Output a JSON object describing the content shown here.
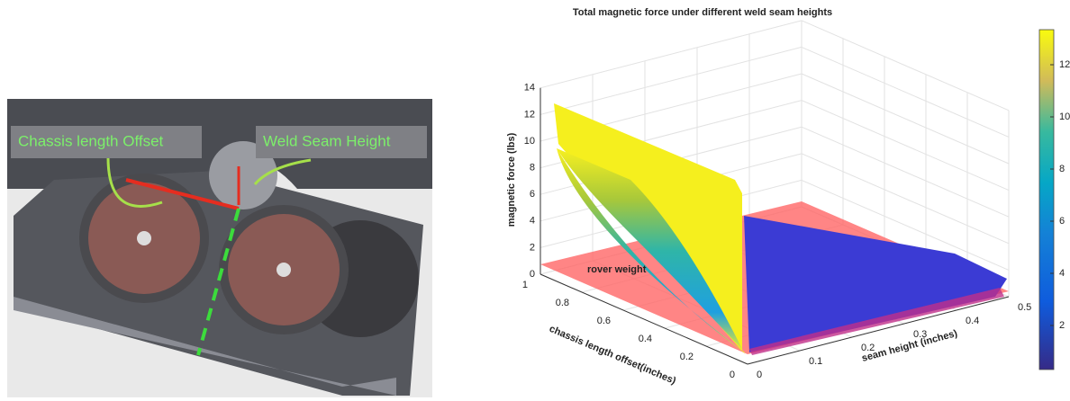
{
  "left_panel": {
    "labels": [
      "Chassis length Offset",
      "Weld Seam Height"
    ]
  },
  "right_panel": {
    "title": "Total magnetic force under different weld seam heights",
    "z_label": "magnetic force (lbs)",
    "x_label": "chassis length offset(inches)",
    "y_label": "seam height (inches)",
    "annotation": "rover weight",
    "z_ticks": [
      0,
      2,
      4,
      6,
      8,
      10,
      12,
      14
    ],
    "x_ticks": [
      0,
      0.2,
      0.4,
      0.6,
      0.8,
      1
    ],
    "y_ticks": [
      0,
      0.1,
      0.2,
      0.3,
      0.4,
      0.5
    ],
    "colorbar_ticks": [
      2,
      4,
      6,
      8,
      10,
      12
    ]
  }
}
